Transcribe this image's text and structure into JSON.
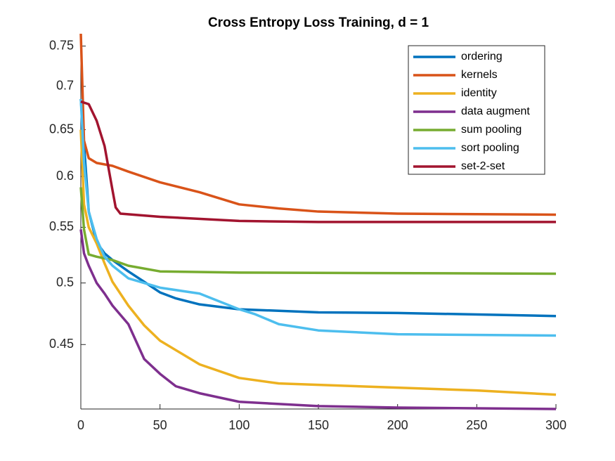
{
  "chart_data": {
    "type": "line",
    "title": "Cross Entropy Loss Training, d = 1",
    "yscale": "log",
    "xlim": [
      0,
      300
    ],
    "ylim": [
      0.403,
      0.766
    ],
    "xticks": [
      0,
      50,
      100,
      150,
      200,
      250,
      300
    ],
    "yticks": [
      0.45,
      0.5,
      0.55,
      0.6,
      0.65,
      0.7,
      0.75
    ],
    "legend": "upper right",
    "series": [
      {
        "name": "ordering",
        "color": "#0072BD",
        "x": [
          0,
          5,
          10,
          15,
          20,
          30,
          40,
          50,
          60,
          75,
          100,
          150,
          200,
          300
        ],
        "values": [
          0.685,
          0.565,
          0.536,
          0.526,
          0.52,
          0.51,
          0.501,
          0.492,
          0.487,
          0.482,
          0.478,
          0.4755,
          0.475,
          0.4725
        ]
      },
      {
        "name": "kernels",
        "color": "#D95319",
        "x": [
          0,
          2,
          5,
          10,
          20,
          30,
          50,
          75,
          100,
          125,
          150,
          200,
          300
        ],
        "values": [
          0.766,
          0.638,
          0.619,
          0.614,
          0.611,
          0.605,
          0.594,
          0.584,
          0.572,
          0.568,
          0.565,
          0.563,
          0.562
        ]
      },
      {
        "name": "identity",
        "color": "#EDB120",
        "x": [
          0,
          2,
          5,
          10,
          15,
          20,
          30,
          40,
          50,
          75,
          100,
          125,
          150,
          200,
          250,
          300
        ],
        "values": [
          0.65,
          0.572,
          0.55,
          0.535,
          0.517,
          0.501,
          0.481,
          0.465,
          0.453,
          0.435,
          0.425,
          0.421,
          0.42,
          0.418,
          0.416,
          0.413
        ]
      },
      {
        "name": "data augment",
        "color": "#7E2F8E",
        "x": [
          0,
          2,
          5,
          10,
          15,
          20,
          30,
          40,
          50,
          60,
          75,
          100,
          150,
          200,
          300
        ],
        "values": [
          0.548,
          0.526,
          0.515,
          0.5,
          0.491,
          0.481,
          0.466,
          0.439,
          0.428,
          0.419,
          0.414,
          0.408,
          0.405,
          0.404,
          0.403
        ]
      },
      {
        "name": "sum pooling",
        "color": "#77AC30",
        "x": [
          0,
          2,
          5,
          10,
          20,
          30,
          50,
          100,
          300
        ],
        "values": [
          0.589,
          0.548,
          0.525,
          0.523,
          0.52,
          0.515,
          0.51,
          0.509,
          0.508
        ]
      },
      {
        "name": "sort pooling",
        "color": "#4DBEEE",
        "x": [
          0,
          2,
          5,
          10,
          15,
          20,
          30,
          50,
          75,
          100,
          110,
          125,
          150,
          200,
          300
        ],
        "values": [
          0.685,
          0.615,
          0.565,
          0.539,
          0.523,
          0.515,
          0.504,
          0.496,
          0.491,
          0.478,
          0.474,
          0.466,
          0.461,
          0.458,
          0.457
        ]
      },
      {
        "name": "set-2-set",
        "color": "#A2142F",
        "x": [
          0,
          5,
          10,
          15,
          20,
          22,
          25,
          50,
          100,
          150,
          300
        ],
        "values": [
          0.682,
          0.679,
          0.66,
          0.632,
          0.586,
          0.569,
          0.563,
          0.56,
          0.556,
          0.555,
          0.555
        ]
      }
    ]
  }
}
